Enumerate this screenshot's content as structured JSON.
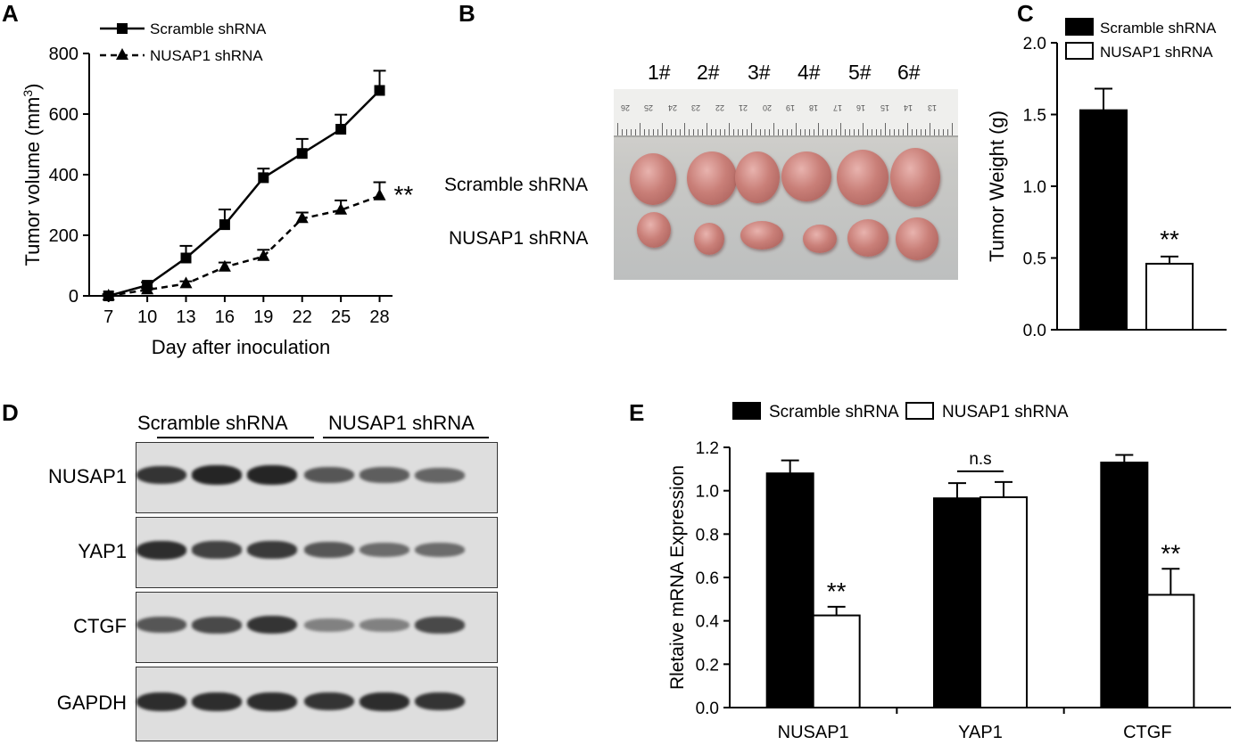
{
  "panels": {
    "A": "A",
    "B": "B",
    "C": "C",
    "D": "D",
    "E": "E"
  },
  "colors": {
    "scramble": "#000000",
    "nusap1": "#ffffff",
    "axis": "#000000"
  },
  "chart_data": [
    {
      "id": "A",
      "type": "line",
      "xlabel": "Day after inoculation",
      "ylabel": "Tumor volume (mm",
      "ylabel_sup": "3",
      "ylabel_tail": ")",
      "x": [
        7,
        10,
        13,
        16,
        19,
        22,
        25,
        28
      ],
      "ylim": [
        0,
        800
      ],
      "yticks": [
        0,
        200,
        400,
        600,
        800
      ],
      "legend_position": "top-left",
      "annotation": "**",
      "series": [
        {
          "name": "Scramble shRNA",
          "marker": "square",
          "line": "solid",
          "values": [
            0,
            35,
            125,
            235,
            390,
            470,
            550,
            678
          ],
          "errors": [
            5,
            10,
            40,
            50,
            30,
            48,
            48,
            65
          ]
        },
        {
          "name": "NUSAP1 shRNA",
          "marker": "triangle",
          "line": "dashed",
          "values": [
            0,
            20,
            40,
            95,
            130,
            255,
            283,
            330
          ],
          "errors": [
            5,
            5,
            8,
            15,
            22,
            20,
            32,
            45
          ]
        }
      ]
    },
    {
      "id": "C",
      "type": "bar",
      "ylabel": "Tumor Weight (g)",
      "ylim": [
        0,
        2.0
      ],
      "yticks": [
        "0.0",
        "0.5",
        "1.0",
        "1.5",
        "2.0"
      ],
      "legend_position": "top-right",
      "annotation": "**",
      "series": [
        {
          "name": "Scramble shRNA",
          "value": 1.53,
          "error": 0.15
        },
        {
          "name": "NUSAP1 shRNA",
          "value": 0.46,
          "error": 0.05
        }
      ]
    },
    {
      "id": "E",
      "type": "bar",
      "ylabel": "Rletaive mRNA Expression",
      "ylim": [
        0,
        1.2
      ],
      "yticks": [
        "0.0",
        "0.2",
        "0.4",
        "0.6",
        "0.8",
        "1.0",
        "1.2"
      ],
      "categories": [
        "NUSAP1",
        "YAP1",
        "CTGF"
      ],
      "legend_position": "top",
      "annotations": [
        "**",
        "n.s",
        "**"
      ],
      "series": [
        {
          "name": "Scramble shRNA",
          "values": [
            1.08,
            0.965,
            1.13
          ],
          "errors": [
            0.06,
            0.07,
            0.035
          ]
        },
        {
          "name": "NUSAP1 shRNA",
          "values": [
            0.425,
            0.97,
            0.52
          ],
          "errors": [
            0.04,
            0.07,
            0.12
          ]
        }
      ]
    }
  ],
  "photo": {
    "samples": [
      "1#",
      "2#",
      "3#",
      "4#",
      "5#",
      "6#"
    ],
    "rows": [
      "Scramble shRNA",
      "NUSAP1 shRNA"
    ],
    "ruler_marks": [
      "26",
      "25",
      "24",
      "23",
      "22",
      "21",
      "20",
      "19",
      "18",
      "17",
      "16",
      "15",
      "14",
      "13"
    ]
  },
  "blot": {
    "groups": [
      "Scramble shRNA",
      "NUSAP1 shRNA"
    ],
    "proteins": [
      {
        "name": "NUSAP1",
        "intensities": [
          0.85,
          0.95,
          0.95,
          0.6,
          0.55,
          0.5
        ]
      },
      {
        "name": "YAP1",
        "intensities": [
          0.9,
          0.75,
          0.8,
          0.6,
          0.45,
          0.45
        ]
      },
      {
        "name": "CTGF",
        "intensities": [
          0.6,
          0.7,
          0.85,
          0.3,
          0.3,
          0.7
        ]
      },
      {
        "name": "GAPDH",
        "intensities": [
          0.9,
          0.9,
          0.9,
          0.85,
          0.9,
          0.85
        ]
      }
    ]
  }
}
